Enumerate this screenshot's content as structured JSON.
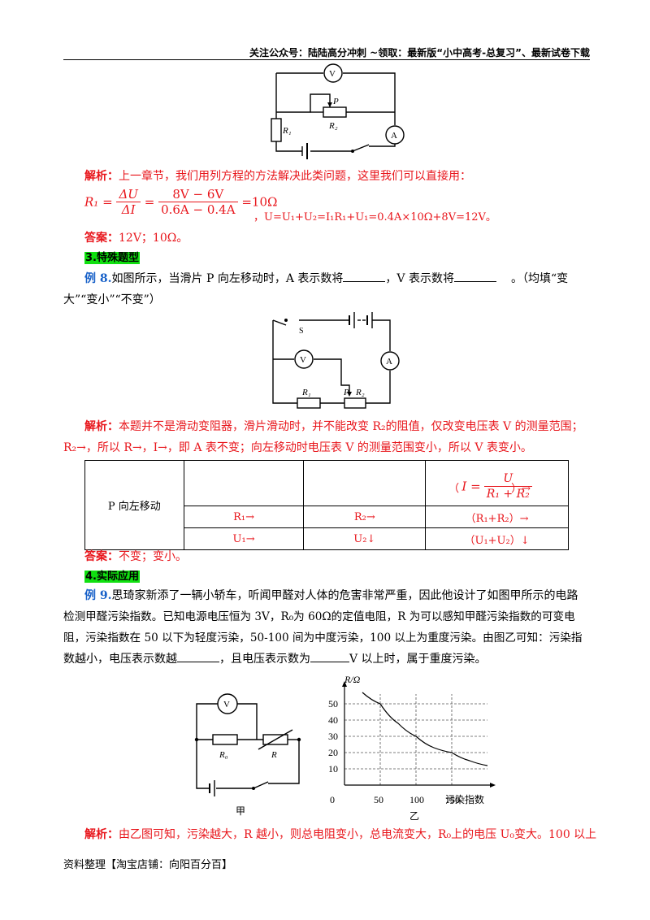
{
  "header": {
    "text": "关注公众号：陆陆高分冲刺  ~领取：最新版“小中高考-总复习”、最新试卷下载"
  },
  "fig1": {
    "V": "V",
    "P": "P",
    "R1": "R₁",
    "R2": "R₂",
    "A": "A"
  },
  "analysis1": {
    "label": "解析：",
    "text": "上一章节，我们用列方程的方法解决此类问题，这里我们可以直接用：",
    "formula_lhs": "R₁ =",
    "frac1_num": "ΔU",
    "frac1_den": "ΔI",
    "frac2_num": "8V − 6V",
    "frac2_den": "0.6A − 0.4A",
    "formula_result": "=10Ω",
    "formula2": "，U=U₁+U₂=I₁R₁+U₁=0.4A×10Ω+8V=12V。"
  },
  "answer1": {
    "label": "答案：",
    "text": "12V；10Ω。"
  },
  "section3": {
    "title": "3.特殊题型"
  },
  "example8": {
    "label": "例 8.",
    "text_a": "如图所示，当滑片 P 向左移动时，A 表示数将",
    "text_b": "，V 表示数将",
    "text_c": "。（均填“变",
    "text_d": "大”“变小”“不变”）"
  },
  "fig2": {
    "S": "S",
    "V": "V",
    "A": "A",
    "R1": "R₁",
    "P": "P",
    "R2": "R₂"
  },
  "analysis2": {
    "label": "解析：",
    "line1": "本题并不是滑动变阻器，滑片滑动时，并不能改变 R₂的阻值，仅改变电压表 V 的测量范围；",
    "line2": "R₂→，所以 R→，I→，即 A 表不变；向左移动时电压表 V 的测量范围变小，所以 V 表变小。"
  },
  "table": {
    "row_label": "P 向左移动",
    "formula_i": "I =",
    "formula_num": "U",
    "formula_den": "R₁ + R₂",
    "formula_paren_open": "（",
    "formula_paren_close": "）→",
    "r2c1": "R₁→",
    "r2c2": "R₂→",
    "r2c3": "（R₁+R₂）→",
    "r3c1": "U₁→",
    "r3c2": "U₂↓",
    "r3c3": "（U₁+U₂）↓"
  },
  "answer2": {
    "label": "答案：",
    "text": "不变；变小。"
  },
  "section4": {
    "title": "4.实际应用"
  },
  "example9": {
    "label": "例 9.",
    "line1": "思琦家新添了一辆小轿车，听闻甲醛对人体的危害非常严重，因此他设计了如图甲所示的电路",
    "line2": "检测甲醛污染指数。已知电源电压恒为 3V，R₀为 60Ω的定值电阻，R 为可以感知甲醛污染指数的可变电",
    "line3": "阻，污染指数在 50 以下为轻度污染，50-100 间为中度污染，100 以上为重度污染。由图乙可知：污染指",
    "line4a": "数越小，电压表示数越",
    "line4b": "，且电压表示数为",
    "line4c": "V 以上时，属于重度污染。"
  },
  "fig3": {
    "V": "V",
    "R0": "R₀",
    "R": "R",
    "caption": "甲"
  },
  "chart_data": {
    "type": "line",
    "ylabel": "R/Ω",
    "xlabel": "污染指数",
    "caption": "乙",
    "x_ticks": [
      "0",
      "50",
      "100",
      "150"
    ],
    "y_ticks": [
      "10",
      "20",
      "30",
      "40",
      "50"
    ],
    "xlim": [
      0,
      200
    ],
    "ylim": [
      0,
      60
    ],
    "series": [
      {
        "x": [
          25,
          50,
          75,
          100,
          125,
          150,
          175,
          200
        ],
        "y": [
          57,
          50,
          38,
          30,
          23,
          20,
          15,
          12
        ]
      }
    ]
  },
  "analysis3": {
    "label": "解析：",
    "text": "由乙图可知，污染越大，R 越小，则总电阻变小，总电流变大，R₀上的电压 U₀变大。100 以上"
  },
  "footer": {
    "text": "资料整理【淘宝店铺：向阳百分百】"
  }
}
